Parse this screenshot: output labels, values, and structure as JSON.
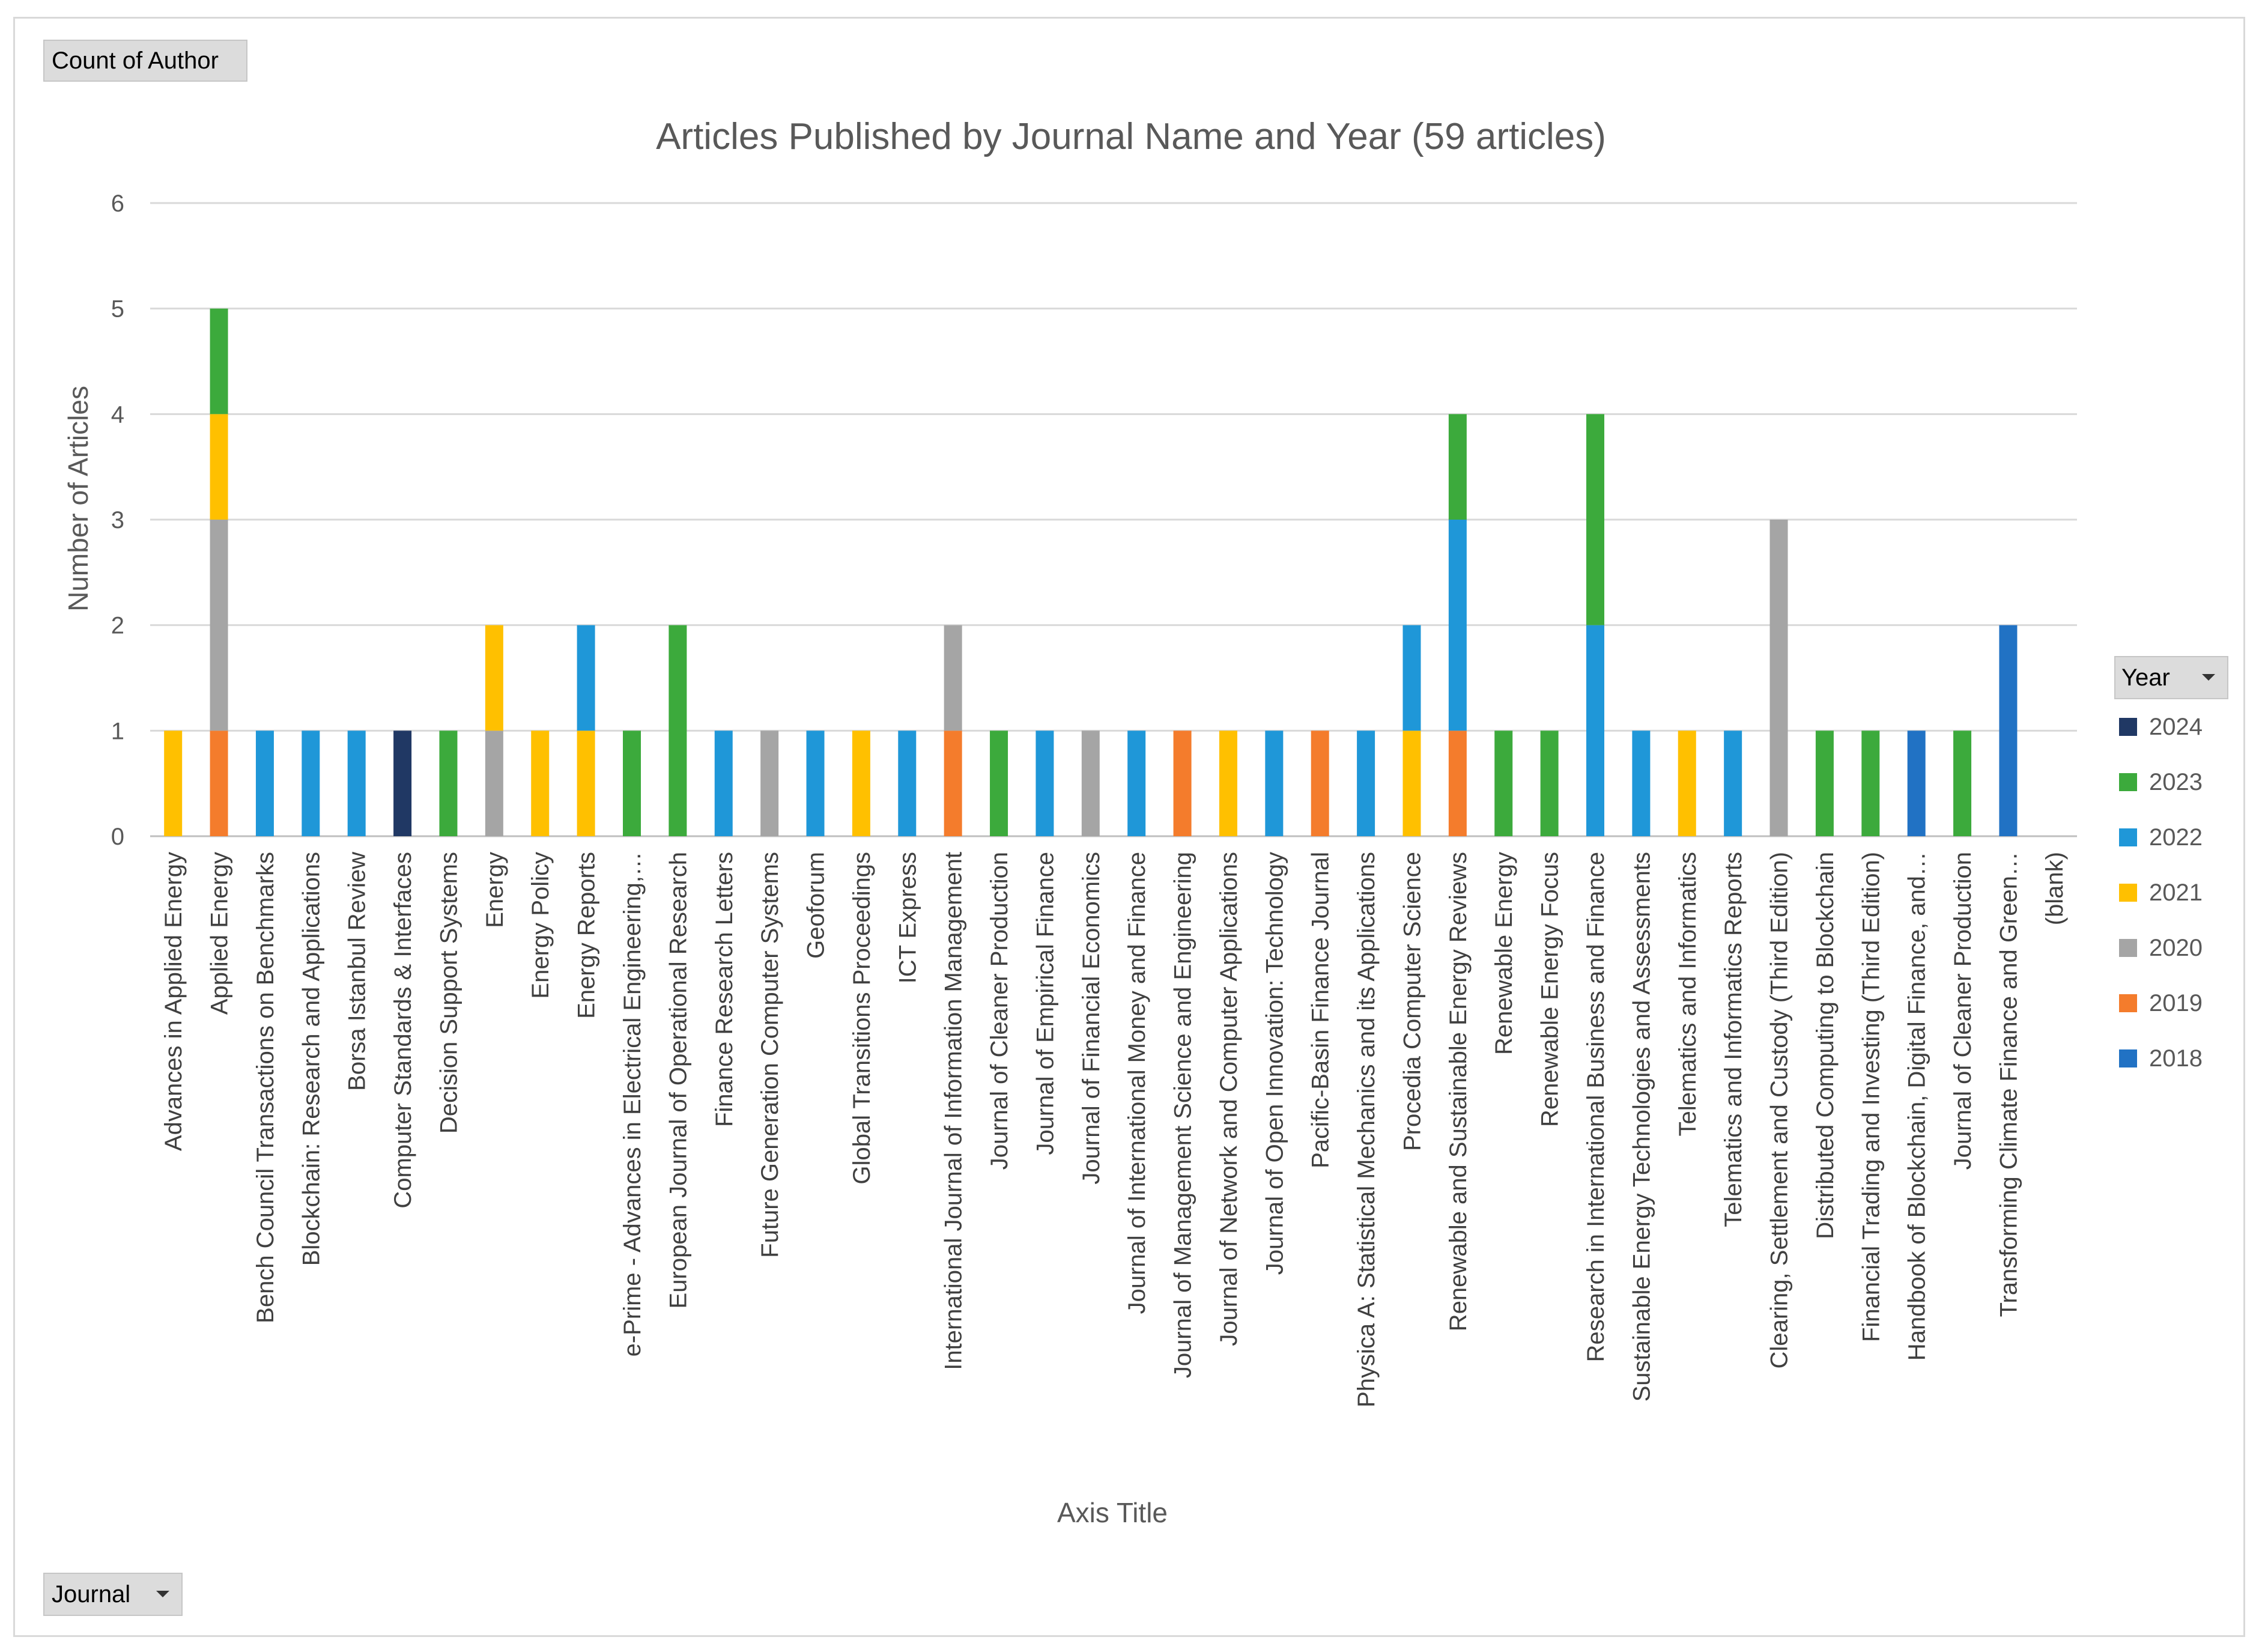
{
  "filters": {
    "value_field": "Count of Author",
    "row_field": "Journal",
    "legend_field": "Year"
  },
  "chart_data": {
    "type": "bar",
    "stacked": true,
    "title": "Articles Published by Journal Name and Year (59 articles)",
    "xlabel": "Axis Title",
    "ylabel": "Number of Articles",
    "ylim": [
      0,
      6
    ],
    "yticks": [
      0,
      1,
      2,
      3,
      4,
      5,
      6
    ],
    "grid": true,
    "legend_position": "right",
    "categories": [
      "Advances in Applied Energy",
      "Applied Energy",
      "Bench Council Transactions on Benchmarks",
      "Blockchain: Research and Applications",
      "Borsa Istanbul Review",
      "Computer Standards & Interfaces",
      "Decision Support Systems",
      "Energy",
      "Energy Policy",
      "Energy Reports",
      "e-Prime - Advances in Electrical Engineering,…",
      "European Journal of Operational Research",
      "Finance Research Letters",
      "Future Generation Computer Systems",
      "Geoforum",
      "Global Transitions Proceedings",
      "ICT Express",
      "International Journal of Information Management",
      "Journal of Cleaner Production",
      "Journal of Empirical Finance",
      "Journal of Financial Economics",
      "Journal of International Money and Finance",
      "Journal of Management Science and Engineering",
      "Journal of Network and Computer Applications",
      "Journal of Open Innovation: Technology",
      "Pacific-Basin Finance Journal",
      "Physica A: Statistical Mechanics and its Applications",
      "Procedia Computer Science",
      "Renewable and Sustainable Energy Reviews",
      "Renewable Energy",
      "Renewable Energy Focus",
      "Research in International Business and Finance",
      "Sustainable Energy Technologies and Assessments",
      "Telematics and Informatics",
      "Telematics and Informatics Reports",
      "Clearing, Settlement and Custody (Third Edition)",
      "Distributed Computing to Blockchain",
      "Financial Trading and Investing (Third Edition)",
      "Handbook of Blockchain, Digital Finance, and…",
      "Journal of Cleaner Production",
      "Transforming Climate Finance and Green…",
      "(blank)"
    ],
    "series": [
      {
        "name": "2024",
        "color": "#203864",
        "values": [
          0,
          0,
          0,
          0,
          0,
          1,
          0,
          0,
          0,
          0,
          0,
          0,
          0,
          0,
          0,
          0,
          0,
          0,
          0,
          0,
          0,
          0,
          0,
          0,
          0,
          0,
          0,
          0,
          0,
          0,
          0,
          0,
          0,
          0,
          0,
          0,
          0,
          0,
          0,
          0,
          0,
          0
        ]
      },
      {
        "name": "2023",
        "color": "#3caa3c",
        "values": [
          0,
          1,
          0,
          0,
          0,
          0,
          1,
          0,
          0,
          0,
          1,
          2,
          0,
          0,
          0,
          0,
          0,
          0,
          1,
          0,
          0,
          0,
          0,
          0,
          0,
          0,
          0,
          0,
          1,
          1,
          1,
          2,
          0,
          0,
          0,
          0,
          1,
          1,
          0,
          1,
          0,
          0
        ]
      },
      {
        "name": "2022",
        "color": "#1f97d8",
        "values": [
          0,
          0,
          1,
          1,
          1,
          0,
          0,
          0,
          0,
          1,
          0,
          0,
          1,
          0,
          1,
          0,
          1,
          0,
          0,
          1,
          0,
          1,
          0,
          0,
          1,
          0,
          1,
          1,
          2,
          0,
          0,
          2,
          1,
          0,
          1,
          0,
          0,
          0,
          0,
          0,
          0,
          0
        ]
      },
      {
        "name": "2021",
        "color": "#ffc000",
        "values": [
          1,
          1,
          0,
          0,
          0,
          0,
          0,
          1,
          1,
          1,
          0,
          0,
          0,
          0,
          0,
          1,
          0,
          0,
          0,
          0,
          0,
          0,
          0,
          1,
          0,
          0,
          0,
          1,
          0,
          0,
          0,
          0,
          0,
          1,
          0,
          0,
          0,
          0,
          0,
          0,
          0,
          0
        ]
      },
      {
        "name": "2020",
        "color": "#a5a5a5",
        "values": [
          0,
          2,
          0,
          0,
          0,
          0,
          0,
          1,
          0,
          0,
          0,
          0,
          0,
          1,
          0,
          0,
          0,
          1,
          0,
          0,
          1,
          0,
          0,
          0,
          0,
          0,
          0,
          0,
          0,
          0,
          0,
          0,
          0,
          0,
          0,
          3,
          0,
          0,
          0,
          0,
          0,
          0
        ]
      },
      {
        "name": "2019",
        "color": "#f47c2c",
        "values": [
          0,
          1,
          0,
          0,
          0,
          0,
          0,
          0,
          0,
          0,
          0,
          0,
          0,
          0,
          0,
          0,
          0,
          1,
          0,
          0,
          0,
          0,
          1,
          0,
          0,
          1,
          0,
          0,
          1,
          0,
          0,
          0,
          0,
          0,
          0,
          0,
          0,
          0,
          0,
          0,
          0,
          0
        ]
      },
      {
        "name": "2018",
        "color": "#2172c4",
        "values": [
          0,
          0,
          0,
          0,
          0,
          0,
          0,
          0,
          0,
          0,
          0,
          0,
          0,
          0,
          0,
          0,
          0,
          0,
          0,
          0,
          0,
          0,
          0,
          0,
          0,
          0,
          0,
          0,
          0,
          0,
          0,
          0,
          0,
          0,
          0,
          0,
          0,
          0,
          1,
          0,
          2,
          0
        ]
      }
    ]
  }
}
